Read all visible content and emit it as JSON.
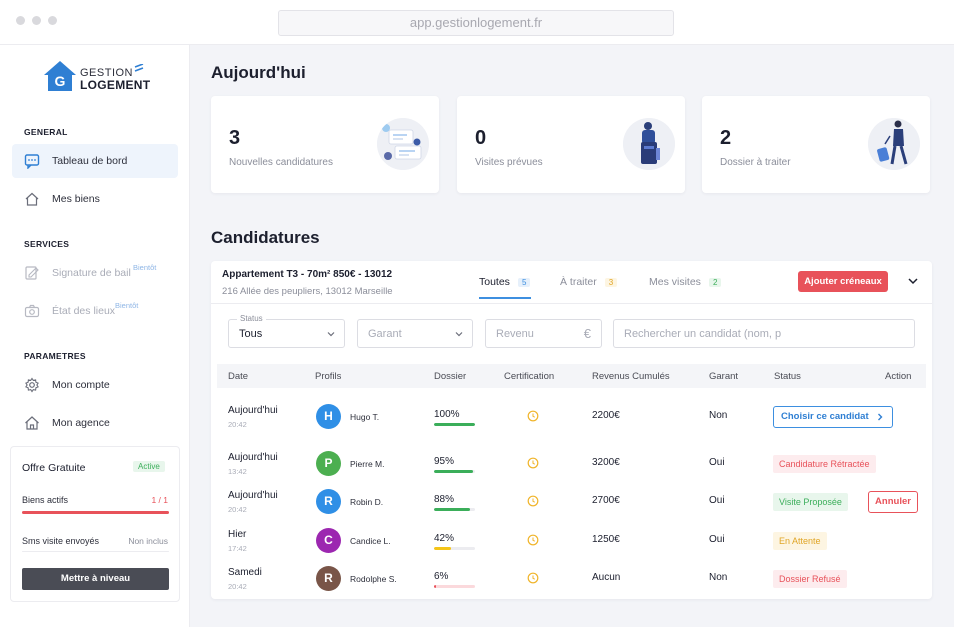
{
  "browser": {
    "url": "app.gestionlogement.fr"
  },
  "brand": {
    "line1": "GESTION",
    "line2": "LOGEMENT",
    "accent": "#3d8fe0"
  },
  "sidebar": {
    "sections": [
      {
        "label": "GENERAL"
      },
      {
        "label": "SERVICES"
      },
      {
        "label": "PARAMETRES"
      }
    ],
    "items": [
      {
        "label": "Tableau de bord",
        "icon": "dashboard-chat-icon",
        "active": true
      },
      {
        "label": "Mes biens",
        "icon": "house-icon"
      },
      {
        "label": "Signature de bail",
        "icon": "signature-icon",
        "badge": "Bientôt",
        "disabled": true
      },
      {
        "label": "État des lieux",
        "icon": "camera-icon",
        "badge": "Bientôt",
        "disabled": true
      },
      {
        "label": "Mon compte",
        "icon": "gear-icon"
      },
      {
        "label": "Mon agence",
        "icon": "agency-house-icon"
      }
    ]
  },
  "plan": {
    "title": "Offre Gratuite",
    "badge": "Active",
    "rows": [
      {
        "label": "Biens actifs",
        "value": "1 / 1",
        "fill": 1.0
      },
      {
        "label": "Sms visite envoyés",
        "value": "Non inclus",
        "fill": 0.0
      }
    ],
    "button": "Mettre à niveau"
  },
  "today": {
    "title": "Aujourd'hui",
    "kpis": [
      {
        "value": "3",
        "label": "Nouvelles candidatures",
        "icon": "candidates-illustration-icon"
      },
      {
        "value": "0",
        "label": "Visites prévues",
        "icon": "mailbox-person-illustration-icon"
      },
      {
        "value": "2",
        "label": "Dossier à traiter",
        "icon": "traveler-suitcase-illustration-icon"
      }
    ]
  },
  "candidatures": {
    "title": "Candidatures",
    "property": {
      "title": "Appartement T3 - 70m² 850€ - 13012",
      "address": "216 Allée des peupliers, 13012 Marseille"
    },
    "tabs": [
      {
        "label": "Toutes",
        "count": "5",
        "color": "#3d8fe0",
        "bg": "#e6f0fb"
      },
      {
        "label": "À traiter",
        "count": "3",
        "color": "#e0a526",
        "bg": "#fdf5e2"
      },
      {
        "label": "Mes visites",
        "count": "2",
        "color": "#3bae5a",
        "bg": "#e8f6ec"
      }
    ],
    "add_button": "Ajouter créneaux",
    "filters": {
      "status_legend": "Status",
      "status_value": "Tous",
      "garant_placeholder": "Garant",
      "revenu_placeholder": "Revenu",
      "revenu_unit": "€",
      "search_placeholder": "Rechercher un candidat (nom, p"
    },
    "columns": [
      "Date",
      "Profils",
      "Dossier",
      "Certification",
      "Revenus Cumulés",
      "Garant",
      "Status",
      "Action"
    ],
    "rows": [
      {
        "date": "Aujourd'hui",
        "time": "20:42",
        "initial": "H",
        "avatar_color": "#2f8fe6",
        "name": "Hugo T.",
        "dossier": "100%",
        "fill": 1.0,
        "bar_color": "#3bae5a",
        "revenu": "2200€",
        "garant": "Non",
        "status": "Choisir ce candidat",
        "status_kind": "button"
      },
      {
        "date": "Aujourd'hui",
        "time": "13:42",
        "initial": "P",
        "avatar_color": "#4caf50",
        "name": "Pierre M.",
        "dossier": "95%",
        "fill": 0.95,
        "bar_color": "#3bae5a",
        "revenu": "3200€",
        "garant": "Oui",
        "status": "Candidature Rétractée",
        "status_kind": "red"
      },
      {
        "date": "Aujourd'hui",
        "time": "20:42",
        "initial": "R",
        "avatar_color": "#2f8fe6",
        "name": "Robin D.",
        "dossier": "88%",
        "fill": 0.88,
        "bar_color": "#3bae5a",
        "revenu": "2700€",
        "garant": "Oui",
        "status": "Visite Proposée",
        "status_kind": "green",
        "action": "Annuler"
      },
      {
        "date": "Hier",
        "time": "17:42",
        "initial": "C",
        "avatar_color": "#9c27b0",
        "name": "Candice L.",
        "dossier": "42%",
        "fill": 0.42,
        "bar_color": "#f5c518",
        "revenu": "1250€",
        "garant": "Oui",
        "status": "En Attente",
        "status_kind": "orange"
      },
      {
        "date": "Samedi",
        "time": "20:42",
        "initial": "R",
        "avatar_color": "#795548",
        "name": "Rodolphe S.",
        "dossier": "6%",
        "fill": 0.06,
        "bar_color": "#e8525a",
        "revenu": "Aucun",
        "garant": "Non",
        "status": "Dossier Refusé",
        "status_kind": "red"
      }
    ]
  }
}
